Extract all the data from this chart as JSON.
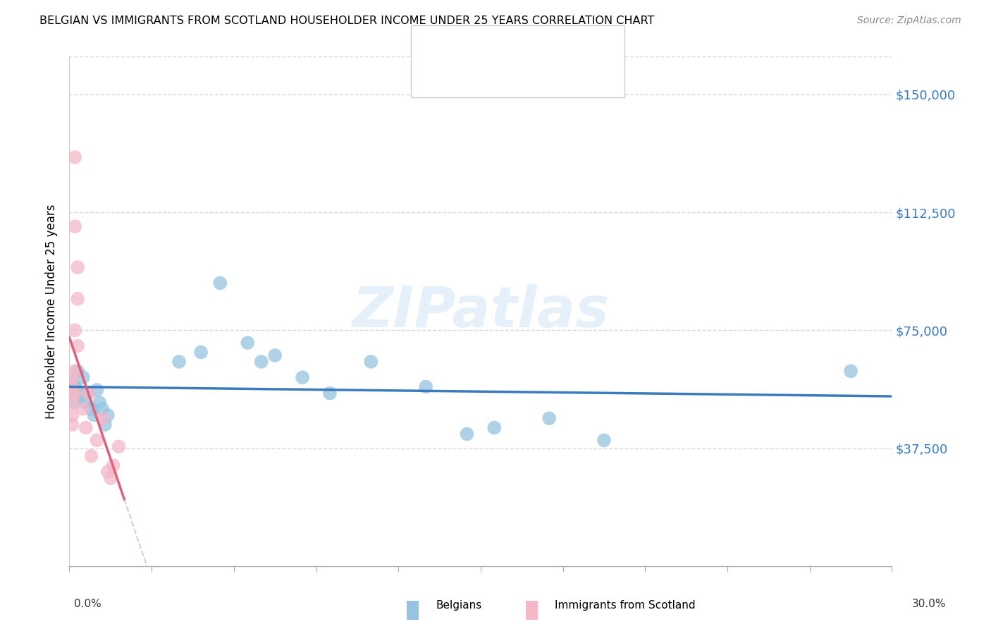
{
  "title": "BELGIAN VS IMMIGRANTS FROM SCOTLAND HOUSEHOLDER INCOME UNDER 25 YEARS CORRELATION CHART",
  "source": "Source: ZipAtlas.com",
  "ylabel": "Householder Income Under 25 years",
  "yticks": [
    0,
    37500,
    75000,
    112500,
    150000
  ],
  "ytick_labels": [
    "",
    "$37,500",
    "$75,000",
    "$112,500",
    "$150,000"
  ],
  "xlim": [
    0,
    0.3
  ],
  "ylim": [
    0,
    162000
  ],
  "legend_label1": "Belgians",
  "legend_label2": "Immigrants from Scotland",
  "blue_color": "#94c4e0",
  "pink_color": "#f4b8c8",
  "blue_line_color": "#3a7abf",
  "pink_line_color": "#e0607a",
  "blue_x": [
    0.001,
    0.001,
    0.002,
    0.002,
    0.003,
    0.003,
    0.004,
    0.004,
    0.005,
    0.006,
    0.007,
    0.008,
    0.009,
    0.01,
    0.011,
    0.012,
    0.013,
    0.014,
    0.04,
    0.048,
    0.055,
    0.065,
    0.07,
    0.075,
    0.085,
    0.095,
    0.11,
    0.13,
    0.145,
    0.155,
    0.175,
    0.195,
    0.285
  ],
  "blue_y": [
    58000,
    55000,
    57000,
    52000,
    62000,
    56000,
    55000,
    54000,
    60000,
    52000,
    55000,
    50000,
    48000,
    56000,
    52000,
    50000,
    45000,
    48000,
    65000,
    68000,
    90000,
    71000,
    65000,
    67000,
    60000,
    55000,
    65000,
    57000,
    42000,
    44000,
    47000,
    40000,
    62000
  ],
  "pink_x": [
    0.001,
    0.001,
    0.001,
    0.001,
    0.001,
    0.001,
    0.002,
    0.002,
    0.002,
    0.002,
    0.002,
    0.003,
    0.003,
    0.003,
    0.005,
    0.006,
    0.007,
    0.008,
    0.01,
    0.012,
    0.014,
    0.015,
    0.016,
    0.018
  ],
  "pink_y": [
    60000,
    57000,
    55000,
    52000,
    48000,
    45000,
    130000,
    108000,
    75000,
    62000,
    55000,
    95000,
    85000,
    70000,
    50000,
    44000,
    55000,
    35000,
    40000,
    47000,
    30000,
    28000,
    32000,
    38000
  ],
  "watermark": "ZIPatlas",
  "background_color": "#ffffff",
  "grid_color": "#d8d8d8"
}
